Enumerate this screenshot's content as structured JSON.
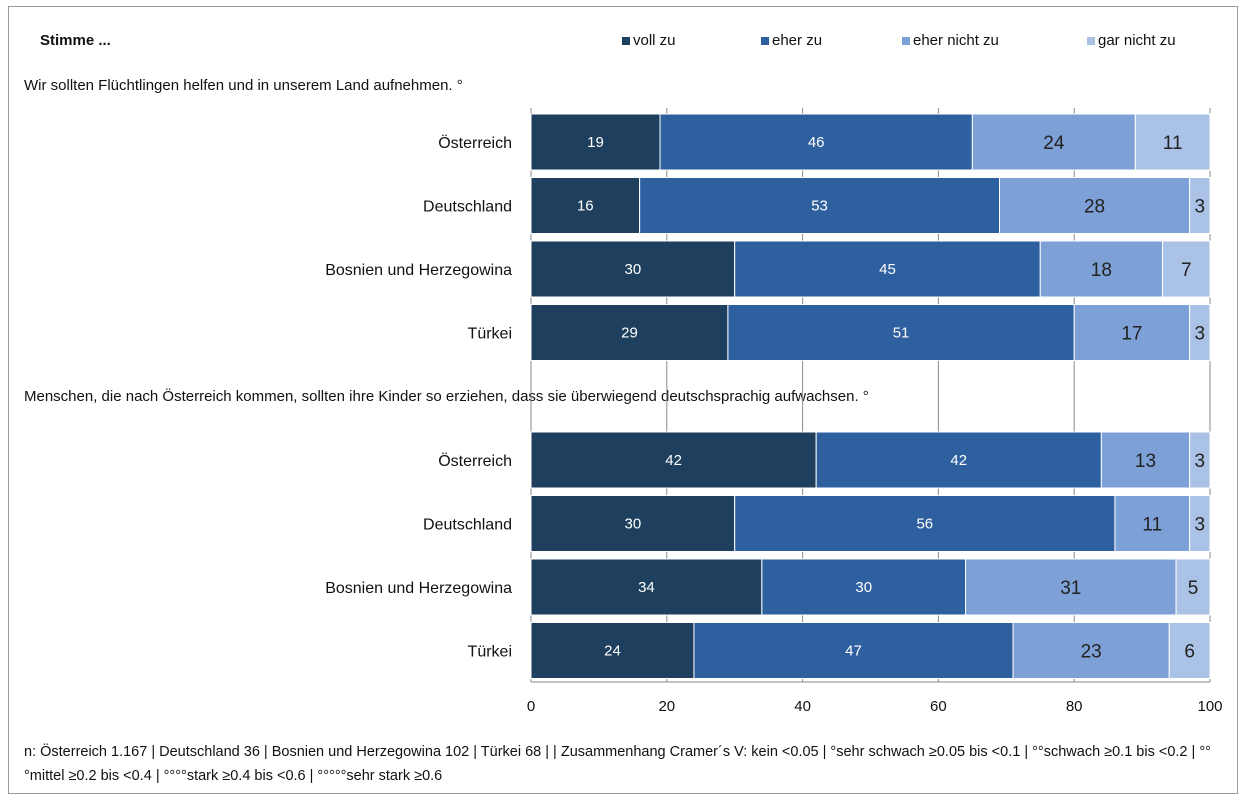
{
  "header": {
    "stimme": "Stimme ..."
  },
  "legend": [
    {
      "label": "voll zu",
      "color": "#1f3f5f"
    },
    {
      "label": "eher zu",
      "color": "#2e5f9f"
    },
    {
      "label": "eher nicht zu",
      "color": "#7da1d6"
    },
    {
      "label": "gar nicht zu",
      "color": "#a9c2e6"
    }
  ],
  "questions": [
    "Wir sollten Flüchtlingen helfen und in unserem Land aufnehmen. °",
    "Menschen, die nach Österreich kommen, sollten ihre Kinder so erziehen, dass sie überwiegend deutschsprachig aufwachsen. °"
  ],
  "footnote": "n: Österreich 1.167 | Deutschland 36 | Bosnien und Herzegowina 102 | Türkei 68 | | Zusammenhang Cramer´s V: kein <0.05 | °sehr schwach ≥0.05 bis <0.1 | °°schwach ≥0.1 bis <0.2 | °°°mittel ≥0.2 bis <0.4 | °°°°stark ≥0.4 bis <0.6 | °°°°°sehr stark ≥0.6",
  "chart_data": {
    "type": "bar",
    "orientation": "horizontal",
    "stacked": true,
    "xlim": [
      0,
      100
    ],
    "xticks": [
      0,
      20,
      40,
      60,
      80,
      100
    ],
    "series_names": [
      "voll zu",
      "eher zu",
      "eher nicht zu",
      "gar nicht zu"
    ],
    "groups": [
      {
        "question": "Wir sollten Flüchtlingen helfen und in unserem Land aufnehmen. °",
        "rows": [
          {
            "category": "Österreich",
            "values": [
              19,
              46,
              24,
              11
            ]
          },
          {
            "category": "Deutschland",
            "values": [
              16,
              53,
              28,
              3
            ]
          },
          {
            "category": "Bosnien und Herzegowina",
            "values": [
              30,
              45,
              18,
              7
            ]
          },
          {
            "category": "Türkei",
            "values": [
              29,
              51,
              17,
              3
            ]
          }
        ]
      },
      {
        "question": "Menschen, die nach Österreich kommen, sollten ihre Kinder so erziehen, dass sie überwiegend deutschsprachig aufwachsen. °",
        "rows": [
          {
            "category": "Österreich",
            "values": [
              42,
              42,
              13,
              3
            ]
          },
          {
            "category": "Deutschland",
            "values": [
              30,
              56,
              11,
              3
            ]
          },
          {
            "category": "Bosnien und Herzegowina",
            "values": [
              34,
              30,
              31,
              5
            ]
          },
          {
            "category": "Türkei",
            "values": [
              24,
              47,
              23,
              6
            ]
          }
        ]
      }
    ]
  }
}
